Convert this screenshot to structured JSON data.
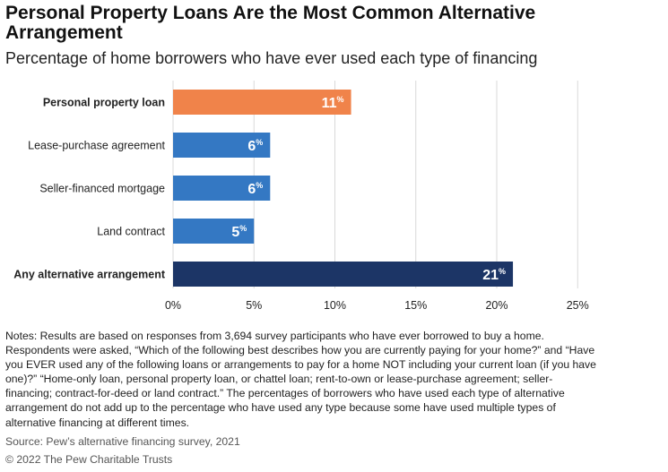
{
  "title": "Personal Property Loans Are the Most Common Alternative Arrangement",
  "subtitle": "Percentage of home borrowers who have ever used each type of financing",
  "chart_data": {
    "type": "bar",
    "orientation": "horizontal",
    "categories": [
      "Personal property loan",
      "Lease-purchase agreement",
      "Seller-financed mortgage",
      "Land contract",
      "Any alternative arrangement"
    ],
    "values": [
      11,
      6,
      6,
      5,
      21
    ],
    "data_labels": [
      "11",
      "6",
      "6",
      "5",
      "21"
    ],
    "label_suffix": "%",
    "bold_categories": [
      "Personal property loan",
      "Any alternative arrangement"
    ],
    "colors": [
      "#f0834a",
      "#3478c3",
      "#3478c3",
      "#3478c3",
      "#1c3566"
    ],
    "xlim": [
      0,
      25
    ],
    "xticks": [
      0,
      5,
      10,
      15,
      20,
      25
    ],
    "xtick_labels": [
      "0%",
      "5%",
      "10%",
      "15%",
      "20%",
      "25%"
    ],
    "grid": "vertical"
  },
  "notes": "Notes: Results are based on responses from 3,694 survey participants who have ever borrowed to buy a home. Respondents were asked, “Which of the following best describes how you are currently paying for your home?” and “Have you EVER used any of the following loans or arrangements to pay for a home NOT including your current loan (if you have one)?” “Home-only loan, personal property loan, or chattel loan; rent-to-own or lease-purchase agreement; seller-financing; contract-for-deed or land contract.” The percentages of borrowers who have used each type of alternative arrangement do not add up to the percentage who have used any type because some have used multiple types of alternative financing at different times.",
  "source": "Source: Pew’s alternative financing survey, 2021",
  "copyright": "© 2022 The Pew Charitable Trusts"
}
